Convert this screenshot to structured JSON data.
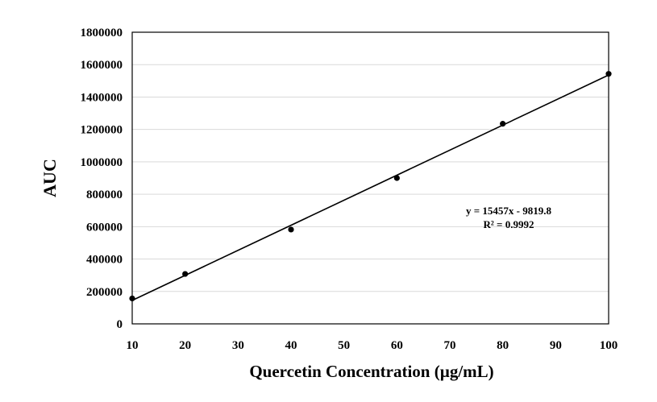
{
  "chart_data": {
    "type": "scatter",
    "title": "",
    "xlabel": "Quercetin Concentration (µg/mL)",
    "ylabel": "AUC",
    "xlim": [
      10,
      100
    ],
    "ylim": [
      0,
      1800000
    ],
    "x_ticks": [
      10,
      20,
      30,
      40,
      50,
      60,
      70,
      80,
      90,
      100
    ],
    "y_ticks": [
      0,
      200000,
      400000,
      600000,
      800000,
      1000000,
      1200000,
      1400000,
      1600000,
      1800000
    ],
    "grid": "horizontal",
    "legend": "none",
    "series": [
      {
        "x": [
          10,
          20,
          40,
          60,
          80,
          100
        ],
        "y": [
          157000,
          308000,
          582000,
          900000,
          1235000,
          1543000
        ]
      }
    ],
    "trendline": {
      "slope": 15457,
      "intercept": -9819.8
    },
    "annotations": {
      "equation": "y = 15457x - 9819.8",
      "r_squared": "R² = 0.9992"
    },
    "colors": {
      "line": "#000000",
      "marker": "#000000",
      "grid": "#d9d9d9",
      "frame": "#000000"
    }
  }
}
